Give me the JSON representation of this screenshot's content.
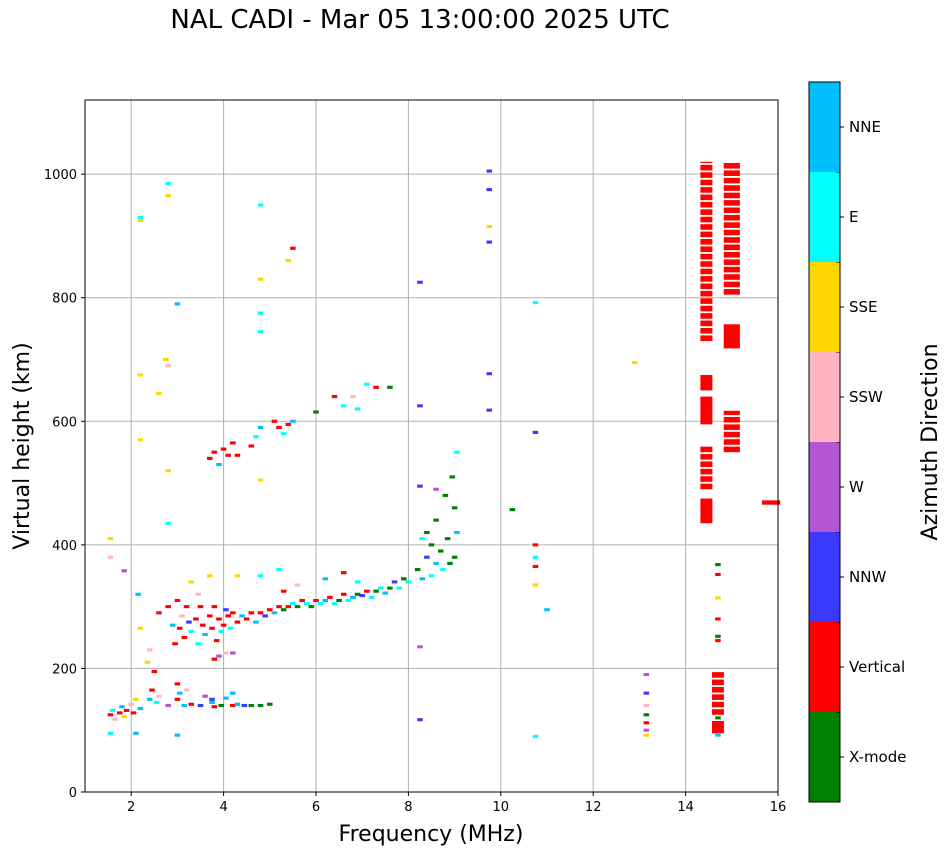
{
  "chart_data": {
    "type": "scatter",
    "title": "NAL CADI - Mar 05 13:00:00 2025 UTC",
    "xlabel": "Frequency (MHz)",
    "ylabel": "Virtual height (km)",
    "xlim": [
      1,
      16
    ],
    "ylim": [
      0,
      1120
    ],
    "xticks": [
      "2",
      "4",
      "6",
      "8",
      "10",
      "12",
      "14",
      "16"
    ],
    "yticks": [
      "0",
      "200",
      "400",
      "600",
      "800",
      "1000"
    ],
    "grid": true,
    "colorbar": {
      "label": "Azimuth Direction",
      "categories": [
        "X-mode",
        "Vertical",
        "NNW",
        "W",
        "SSW",
        "SSE",
        "E",
        "NNE"
      ],
      "colors": [
        "#008000",
        "#ff0000",
        "#3a3aff",
        "#b455d3",
        "#ffb6c1",
        "#ffd700",
        "#00ffff",
        "#00bfff"
      ]
    },
    "points_format": "[frequency_MHz, height_km, category_index]",
    "points": [
      [
        1.55,
        125,
        1
      ],
      [
        1.6,
        132,
        6
      ],
      [
        1.65,
        118,
        4
      ],
      [
        1.75,
        128,
        1
      ],
      [
        1.8,
        138,
        7
      ],
      [
        1.85,
        122,
        5
      ],
      [
        1.9,
        132,
        1
      ],
      [
        2.0,
        142,
        4
      ],
      [
        2.05,
        128,
        1
      ],
      [
        2.1,
        150,
        5
      ],
      [
        2.2,
        135,
        7
      ],
      [
        2.4,
        150,
        7
      ],
      [
        2.45,
        165,
        1
      ],
      [
        2.55,
        145,
        6
      ],
      [
        2.6,
        155,
        4
      ],
      [
        2.8,
        140,
        3
      ],
      [
        3.0,
        150,
        1
      ],
      [
        3.0,
        175,
        1
      ],
      [
        3.05,
        160,
        7
      ],
      [
        3.15,
        140,
        7
      ],
      [
        3.2,
        165,
        4
      ],
      [
        3.3,
        142,
        1
      ],
      [
        3.5,
        140,
        2
      ],
      [
        3.6,
        155,
        3
      ],
      [
        3.75,
        145,
        7
      ],
      [
        3.8,
        138,
        1
      ],
      [
        3.95,
        140,
        0
      ],
      [
        4.05,
        152,
        7
      ],
      [
        4.2,
        140,
        1
      ],
      [
        4.3,
        142,
        7
      ],
      [
        4.45,
        140,
        2
      ],
      [
        4.6,
        140,
        0
      ],
      [
        4.8,
        140,
        0
      ],
      [
        5.0,
        142,
        0
      ],
      [
        4.2,
        160,
        7
      ],
      [
        3.75,
        150,
        2
      ],
      [
        2.1,
        95,
        7
      ],
      [
        1.55,
        95,
        6
      ],
      [
        3.0,
        92,
        7
      ],
      [
        2.15,
        320,
        7
      ],
      [
        2.2,
        265,
        5
      ],
      [
        2.35,
        210,
        5
      ],
      [
        2.4,
        230,
        4
      ],
      [
        2.5,
        195,
        1
      ],
      [
        2.6,
        290,
        1
      ],
      [
        2.8,
        300,
        1
      ],
      [
        2.9,
        270,
        7
      ],
      [
        2.95,
        240,
        1
      ],
      [
        3.0,
        310,
        1
      ],
      [
        3.05,
        265,
        1
      ],
      [
        3.1,
        285,
        4
      ],
      [
        3.15,
        250,
        1
      ],
      [
        3.2,
        300,
        1
      ],
      [
        3.25,
        275,
        2
      ],
      [
        3.3,
        260,
        6
      ],
      [
        3.4,
        280,
        1
      ],
      [
        3.45,
        240,
        6
      ],
      [
        3.5,
        300,
        1
      ],
      [
        3.55,
        270,
        1
      ],
      [
        3.6,
        255,
        7
      ],
      [
        3.7,
        285,
        1
      ],
      [
        3.75,
        265,
        1
      ],
      [
        3.8,
        300,
        1
      ],
      [
        3.85,
        245,
        1
      ],
      [
        3.9,
        280,
        1
      ],
      [
        3.95,
        260,
        6
      ],
      [
        4.0,
        270,
        1
      ],
      [
        4.05,
        295,
        2
      ],
      [
        4.1,
        285,
        1
      ],
      [
        4.15,
        265,
        6
      ],
      [
        4.2,
        290,
        1
      ],
      [
        4.3,
        275,
        1
      ],
      [
        4.4,
        285,
        7
      ],
      [
        4.5,
        280,
        1
      ],
      [
        4.6,
        290,
        1
      ],
      [
        4.7,
        275,
        7
      ],
      [
        4.8,
        290,
        1
      ],
      [
        4.9,
        285,
        2
      ],
      [
        5.0,
        295,
        1
      ],
      [
        5.1,
        290,
        7
      ],
      [
        5.2,
        300,
        1
      ],
      [
        5.3,
        295,
        0
      ],
      [
        5.4,
        300,
        1
      ],
      [
        5.5,
        305,
        6
      ],
      [
        5.6,
        300,
        0
      ],
      [
        5.7,
        310,
        1
      ],
      [
        5.8,
        305,
        6
      ],
      [
        5.9,
        300,
        0
      ],
      [
        6.0,
        310,
        1
      ],
      [
        6.1,
        305,
        6
      ],
      [
        6.2,
        310,
        7
      ],
      [
        6.3,
        315,
        1
      ],
      [
        6.4,
        305,
        6
      ],
      [
        6.5,
        310,
        0
      ],
      [
        6.6,
        320,
        1
      ],
      [
        6.7,
        310,
        6
      ],
      [
        6.8,
        315,
        7
      ],
      [
        6.9,
        320,
        0
      ],
      [
        7.0,
        318,
        2
      ],
      [
        7.1,
        325,
        1
      ],
      [
        7.2,
        315,
        6
      ],
      [
        7.3,
        325,
        0
      ],
      [
        7.4,
        330,
        6
      ],
      [
        7.5,
        322,
        7
      ],
      [
        7.6,
        330,
        0
      ],
      [
        7.7,
        340,
        2
      ],
      [
        7.8,
        330,
        6
      ],
      [
        7.9,
        345,
        0
      ],
      [
        8.0,
        340,
        6
      ],
      [
        5.3,
        325,
        1
      ],
      [
        5.6,
        335,
        4
      ],
      [
        6.2,
        345,
        7
      ],
      [
        6.6,
        355,
        1
      ],
      [
        6.9,
        340,
        6
      ],
      [
        3.3,
        340,
        5
      ],
      [
        3.7,
        350,
        5
      ],
      [
        4.3,
        350,
        5
      ],
      [
        4.8,
        350,
        6
      ],
      [
        5.2,
        360,
        6
      ],
      [
        3.9,
        220,
        3
      ],
      [
        4.2,
        225,
        3
      ],
      [
        3.8,
        215,
        1
      ],
      [
        4.05,
        225,
        4
      ],
      [
        3.45,
        320,
        4
      ],
      [
        8.2,
        360,
        0
      ],
      [
        8.3,
        345,
        7
      ],
      [
        8.4,
        380,
        2
      ],
      [
        8.4,
        420,
        0
      ],
      [
        8.5,
        350,
        6
      ],
      [
        8.5,
        400,
        0
      ],
      [
        8.6,
        370,
        7
      ],
      [
        8.6,
        440,
        0
      ],
      [
        8.7,
        390,
        0
      ],
      [
        8.75,
        360,
        6
      ],
      [
        8.8,
        480,
        0
      ],
      [
        8.85,
        410,
        0
      ],
      [
        8.9,
        370,
        0
      ],
      [
        8.95,
        510,
        0
      ],
      [
        9.0,
        380,
        0
      ],
      [
        9.0,
        460,
        0
      ],
      [
        9.05,
        550,
        6
      ],
      [
        9.05,
        420,
        7
      ],
      [
        8.3,
        410,
        6
      ],
      [
        8.6,
        490,
        3
      ],
      [
        3.7,
        540,
        1
      ],
      [
        3.8,
        550,
        1
      ],
      [
        3.9,
        530,
        7
      ],
      [
        4.0,
        555,
        1
      ],
      [
        4.1,
        545,
        1
      ],
      [
        4.2,
        565,
        1
      ],
      [
        4.3,
        545,
        1
      ],
      [
        4.6,
        560,
        1
      ],
      [
        4.7,
        575,
        6
      ],
      [
        4.8,
        590,
        7
      ],
      [
        5.1,
        600,
        1
      ],
      [
        5.2,
        590,
        1
      ],
      [
        5.3,
        580,
        6
      ],
      [
        5.4,
        595,
        1
      ],
      [
        5.5,
        600,
        7
      ],
      [
        6.0,
        615,
        0
      ],
      [
        6.4,
        640,
        1
      ],
      [
        6.6,
        625,
        6
      ],
      [
        6.8,
        640,
        4
      ],
      [
        6.9,
        620,
        6
      ],
      [
        7.1,
        660,
        6
      ],
      [
        7.3,
        655,
        1
      ],
      [
        7.6,
        655,
        0
      ],
      [
        2.2,
        930,
        6
      ],
      [
        2.2,
        925,
        5
      ],
      [
        2.8,
        985,
        6
      ],
      [
        2.8,
        965,
        5
      ],
      [
        2.75,
        700,
        5
      ],
      [
        2.8,
        690,
        4
      ],
      [
        2.6,
        645,
        5
      ],
      [
        2.2,
        675,
        5
      ],
      [
        3.0,
        790,
        7
      ],
      [
        4.8,
        950,
        6
      ],
      [
        4.8,
        775,
        6
      ],
      [
        4.8,
        745,
        6
      ],
      [
        4.8,
        830,
        5
      ],
      [
        5.5,
        880,
        1
      ],
      [
        5.4,
        860,
        5
      ],
      [
        4.8,
        505,
        5
      ],
      [
        2.2,
        570,
        5
      ],
      [
        2.8,
        520,
        5
      ],
      [
        2.8,
        435,
        6
      ],
      [
        1.55,
        410,
        5
      ],
      [
        1.55,
        380,
        4
      ],
      [
        1.85,
        358,
        3
      ],
      [
        8.25,
        825,
        2
      ],
      [
        8.25,
        625,
        2
      ],
      [
        8.25,
        495,
        2
      ],
      [
        8.25,
        235,
        3
      ],
      [
        8.25,
        117,
        2
      ],
      [
        9.75,
        1005,
        2
      ],
      [
        9.75,
        975,
        2
      ],
      [
        9.75,
        915,
        5
      ],
      [
        9.75,
        890,
        2
      ],
      [
        9.75,
        677,
        2
      ],
      [
        9.75,
        618,
        2
      ],
      [
        10.75,
        582,
        2
      ],
      [
        10.75,
        792,
        6
      ],
      [
        10.25,
        457,
        0
      ],
      [
        10.75,
        400,
        1
      ],
      [
        10.75,
        380,
        6
      ],
      [
        10.75,
        365,
        1
      ],
      [
        10.75,
        335,
        5
      ],
      [
        11.0,
        295,
        7
      ],
      [
        10.75,
        90,
        6
      ],
      [
        12.9,
        695,
        5
      ],
      [
        13.15,
        190,
        3
      ],
      [
        13.15,
        160,
        2
      ],
      [
        13.15,
        140,
        4
      ],
      [
        13.15,
        125,
        0
      ],
      [
        13.15,
        112,
        1
      ],
      [
        13.15,
        100,
        3
      ],
      [
        13.15,
        92,
        5
      ],
      [
        14.7,
        368,
        0
      ],
      [
        14.7,
        352,
        1
      ],
      [
        14.7,
        314,
        5
      ],
      [
        14.7,
        280,
        1
      ],
      [
        14.7,
        252,
        0
      ],
      [
        14.7,
        245,
        1
      ],
      [
        14.7,
        120,
        0
      ],
      [
        14.7,
        92,
        7
      ]
    ],
    "spans_format": "[frequency_MHz, height_from_km, height_to_km, category_index, width_MHz]",
    "spans": [
      [
        14.45,
        730,
        1020,
        1,
        0.26
      ],
      [
        14.45,
        595,
        640,
        1,
        0.26
      ],
      [
        14.45,
        650,
        675,
        1,
        0.26
      ],
      [
        14.45,
        490,
        560,
        1,
        0.26
      ],
      [
        14.45,
        435,
        475,
        1,
        0.26
      ],
      [
        15.0,
        805,
        1020,
        1,
        0.35
      ],
      [
        15.0,
        718,
        757,
        1,
        0.35
      ],
      [
        15.0,
        550,
        617,
        1,
        0.35
      ],
      [
        14.7,
        125,
        195,
        1,
        0.26
      ],
      [
        14.7,
        95,
        115,
        1,
        0.26
      ],
      [
        15.85,
        465,
        472,
        1,
        0.4
      ]
    ]
  }
}
